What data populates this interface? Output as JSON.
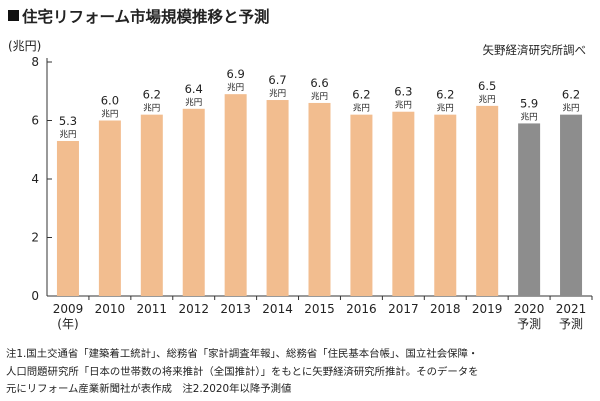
{
  "title": "住宅リフォーム市場規模推移と予測",
  "source": "矢野経済研究所調べ",
  "chart_data": {
    "type": "bar",
    "title": "住宅リフォーム市場規模推移と予測",
    "ylabel": "(兆円)",
    "xlabel_suffix": "(年)",
    "ylim": [
      0,
      8
    ],
    "yticks": [
      0,
      2,
      4,
      6,
      8
    ],
    "unit_label": "兆円",
    "categories": [
      "2009",
      "2010",
      "2011",
      "2012",
      "2013",
      "2014",
      "2015",
      "2016",
      "2017",
      "2018",
      "2019",
      "2020",
      "2021"
    ],
    "sublabels": [
      "",
      "",
      "",
      "",
      "",
      "",
      "",
      "",
      "",
      "",
      "",
      "予測",
      "予測"
    ],
    "values": [
      5.3,
      6.0,
      6.2,
      6.4,
      6.9,
      6.7,
      6.6,
      6.2,
      6.3,
      6.2,
      6.5,
      5.9,
      6.2
    ],
    "value_labels": [
      "5.3",
      "6.0",
      "6.2",
      "6.4",
      "6.9",
      "6.7",
      "6.6",
      "6.2",
      "6.3",
      "6.2",
      "6.5",
      "5.9",
      "6.2"
    ],
    "forecast": [
      false,
      false,
      false,
      false,
      false,
      false,
      false,
      false,
      false,
      false,
      false,
      true,
      true
    ],
    "colors": {
      "actual": "#f2bd8f",
      "forecast": "#8d8d8d"
    },
    "grid": false
  },
  "notes": [
    "注1.国土交通省「建築着工統計」、総務省「家計調査年報」、総務省「住民基本台帳」、国立社会保障・",
    "人口問題研究所「日本の世帯数の将来推計（全国推計）」をもとに矢野経済研究所推計。そのデータを",
    "元にリフォーム産業新聞社が表作成　注2.2020年以降予測値"
  ]
}
